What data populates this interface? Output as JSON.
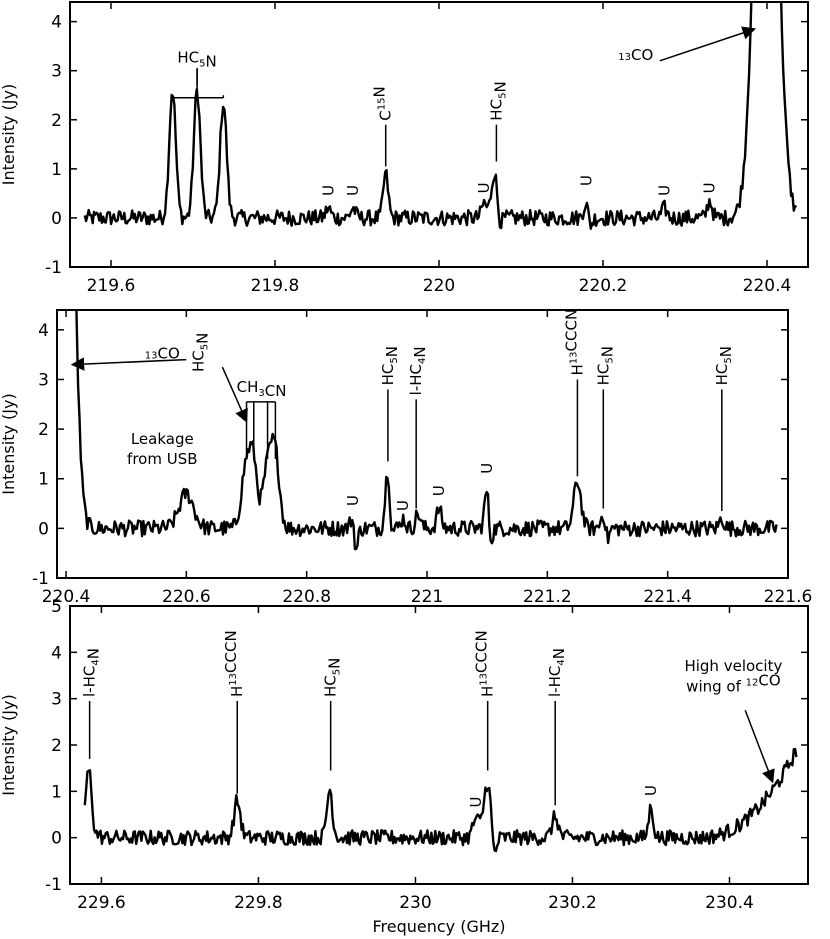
{
  "chart_data": [
    {
      "type": "line",
      "xlim": [
        219.55,
        220.45
      ],
      "ylim": [
        -1,
        4.4
      ],
      "xticks": [
        "219.6",
        "219.8",
        "220",
        "220.2",
        "220.4"
      ],
      "yticks": [
        "-1",
        "0",
        "1",
        "2",
        "3",
        "4"
      ],
      "xlabel": "",
      "ylabel": "Intensity (Jy)",
      "peaks": [
        {
          "x": 219.675,
          "y": 2.6,
          "w": 0.004
        },
        {
          "x": 219.705,
          "y": 2.6,
          "w": 0.004
        },
        {
          "x": 219.737,
          "y": 2.35,
          "w": 0.004
        },
        {
          "x": 219.865,
          "y": 0.2,
          "w": 0.003
        },
        {
          "x": 219.895,
          "y": 0.2,
          "w": 0.003
        },
        {
          "x": 219.935,
          "y": 0.9,
          "w": 0.003
        },
        {
          "x": 220.055,
          "y": 0.3,
          "w": 0.003
        },
        {
          "x": 220.068,
          "y": 1.0,
          "w": 0.004
        },
        {
          "x": 220.18,
          "y": 0.45,
          "w": 0.003
        },
        {
          "x": 220.275,
          "y": 0.2,
          "w": 0.003
        },
        {
          "x": 220.33,
          "y": 0.35,
          "w": 0.003
        },
        {
          "x": 220.399,
          "y": 14,
          "w": 0.012
        }
      ],
      "dips": [
        {
          "x": 220.073,
          "d": -0.35
        },
        {
          "x": 220.183,
          "d": -0.3
        }
      ],
      "labels": [
        {
          "id": "hc5n",
          "parts": [
            [
              "HC",
              "n"
            ],
            [
              "5",
              "sub"
            ],
            [
              "N",
              "n"
            ]
          ],
          "x": 219.705,
          "line_top": 3.05,
          "line_bottom": 2.7,
          "rot": 0,
          "extra_lines": [
            219.675,
            219.737
          ]
        },
        {
          "id": "c15n",
          "parts": [
            [
              "C",
              "n"
            ],
            [
              "15",
              "sup"
            ],
            [
              "N",
              "n"
            ]
          ],
          "x": 219.935,
          "line_top": 1.9,
          "line_bottom": 1.05,
          "rot": -90
        },
        {
          "id": "hc5n-b",
          "parts": [
            [
              "HC",
              "n"
            ],
            [
              "5",
              "sub"
            ],
            [
              "N",
              "n"
            ]
          ],
          "x": 220.07,
          "line_top": 1.9,
          "line_bottom": 1.15,
          "rot": -90
        },
        {
          "id": "u1",
          "parts": [
            [
              "U",
              "n"
            ]
          ],
          "x": 219.865,
          "rot": -90,
          "y": 0.45
        },
        {
          "id": "u2",
          "parts": [
            [
              "U",
              "n"
            ]
          ],
          "x": 219.895,
          "rot": -90,
          "y": 0.45
        },
        {
          "id": "u3",
          "parts": [
            [
              "U",
              "n"
            ]
          ],
          "x": 220.055,
          "rot": -90,
          "y": 0.5
        },
        {
          "id": "u4",
          "parts": [
            [
              "U",
              "n"
            ]
          ],
          "x": 220.18,
          "rot": -90,
          "y": 0.65
        },
        {
          "id": "u5",
          "parts": [
            [
              "U",
              "n"
            ]
          ],
          "x": 220.275,
          "rot": -90,
          "y": 0.45
        },
        {
          "id": "u6",
          "parts": [
            [
              "U",
              "n"
            ]
          ],
          "x": 220.33,
          "rot": -90,
          "y": 0.5
        },
        {
          "id": "co13",
          "parts": [
            [
              "13",
              "sup"
            ],
            [
              "CO",
              "n"
            ]
          ],
          "x": 220.24,
          "y": 3.1,
          "rot": 0,
          "arrow_to": [
            220.385,
            3.85
          ]
        }
      ]
    },
    {
      "type": "line",
      "xlim": [
        220.385,
        221.6
      ],
      "ylim": [
        -1,
        4.4
      ],
      "xticks": [
        "220.4",
        "220.6",
        "220.8",
        "221",
        "221.2",
        "221.4",
        "221.6"
      ],
      "yticks": [
        "-1",
        "0",
        "1",
        "2",
        "3",
        "4"
      ],
      "xlabel": "",
      "ylabel": "Intensity (Jy)",
      "peaks": [
        {
          "x": 220.399,
          "y": 14,
          "w": 0.012
        },
        {
          "x": 220.6,
          "y": 0.7,
          "w": 0.012
        },
        {
          "x": 220.7,
          "y": 1.3,
          "w": 0.008
        },
        {
          "x": 220.712,
          "y": 1.1,
          "w": 0.006
        },
        {
          "x": 220.735,
          "y": 1.2,
          "w": 0.008
        },
        {
          "x": 220.748,
          "y": 1.35,
          "w": 0.007
        },
        {
          "x": 220.877,
          "y": 0.25,
          "w": 0.004
        },
        {
          "x": 220.935,
          "y": 1.25,
          "w": 0.004
        },
        {
          "x": 220.96,
          "y": 0.2,
          "w": 0.004
        },
        {
          "x": 220.985,
          "y": 0.3,
          "w": 0.004
        },
        {
          "x": 221.02,
          "y": 0.4,
          "w": 0.004
        },
        {
          "x": 221.1,
          "y": 0.85,
          "w": 0.004
        },
        {
          "x": 221.25,
          "y": 0.95,
          "w": 0.006
        },
        {
          "x": 221.293,
          "y": 0.3,
          "w": 0.004
        },
        {
          "x": 221.49,
          "y": 0.2,
          "w": 0.004
        }
      ],
      "dips": [
        {
          "x": 220.882,
          "d": -0.55
        },
        {
          "x": 220.94,
          "d": -0.35
        },
        {
          "x": 221.105,
          "d": -0.5
        },
        {
          "x": 221.3,
          "d": -0.25
        }
      ],
      "labels": [
        {
          "id": "co13-b",
          "parts": [
            [
              "13",
              "sup"
            ],
            [
              "CO",
              "n"
            ]
          ],
          "x": 220.56,
          "y": 3.3,
          "rot": 0,
          "arrow_to": [
            220.41,
            3.3
          ]
        },
        {
          "id": "hc5n-c",
          "parts": [
            [
              "HC",
              "n"
            ],
            [
              "5",
              "sub"
            ],
            [
              "N",
              "n"
            ]
          ],
          "x": 220.62,
          "y": 3.15,
          "rot": -90,
          "arrow_to": [
            220.7,
            2.15
          ]
        },
        {
          "id": "ch3cn",
          "parts": [
            [
              "CH",
              "n"
            ],
            [
              "3",
              "sub"
            ],
            [
              "CN",
              "n"
            ]
          ],
          "x": 220.725,
          "y": 2.75,
          "rot": 0,
          "lines": [
            220.7,
            220.712,
            220.735,
            220.748
          ],
          "line_top": 2.55,
          "line_bottom": 1.4
        },
        {
          "id": "leakage1",
          "parts": [
            [
              "Leakage",
              "n"
            ]
          ],
          "x": 220.56,
          "y": 1.7,
          "rot": 0
        },
        {
          "id": "leakage2",
          "parts": [
            [
              "from USB",
              "n"
            ]
          ],
          "x": 220.56,
          "y": 1.3,
          "rot": 0
        },
        {
          "id": "hc5n-d",
          "parts": [
            [
              "HC",
              "n"
            ],
            [
              "5",
              "sub"
            ],
            [
              "N",
              "n"
            ]
          ],
          "x": 220.935,
          "line_top": 2.8,
          "line_bottom": 1.35,
          "rot": -90
        },
        {
          "id": "lhc4n",
          "parts": [
            [
              "l-HC",
              "n"
            ],
            [
              "4",
              "sub"
            ],
            [
              "N",
              "n"
            ]
          ],
          "x": 220.982,
          "line_top": 2.6,
          "line_bottom": 0.4,
          "rot": -90
        },
        {
          "id": "hccon",
          "parts": [
            [
              "H",
              "n"
            ],
            [
              "13",
              "sup"
            ],
            [
              "CCCN",
              "n"
            ]
          ],
          "x": 221.25,
          "line_top": 3.0,
          "line_bottom": 1.05,
          "rot": -90
        },
        {
          "id": "hc5n-e",
          "parts": [
            [
              "HC",
              "n"
            ],
            [
              "5",
              "sub"
            ],
            [
              "N",
              "n"
            ]
          ],
          "x": 221.293,
          "line_top": 2.8,
          "line_bottom": 0.4,
          "rot": -90
        },
        {
          "id": "hc5n-f",
          "parts": [
            [
              "HC",
              "n"
            ],
            [
              "5",
              "sub"
            ],
            [
              "N",
              "n"
            ]
          ],
          "x": 221.49,
          "line_top": 2.8,
          "line_bottom": 0.35,
          "rot": -90
        },
        {
          "id": "u7",
          "parts": [
            [
              "U",
              "n"
            ]
          ],
          "x": 220.877,
          "rot": -90,
          "y": 0.45
        },
        {
          "id": "u8",
          "parts": [
            [
              "U",
              "n"
            ]
          ],
          "x": 220.96,
          "rot": -90,
          "y": 0.35
        },
        {
          "id": "u9",
          "parts": [
            [
              "U",
              "n"
            ]
          ],
          "x": 221.02,
          "rot": -90,
          "y": 0.65
        },
        {
          "id": "u10",
          "parts": [
            [
              "U",
              "n"
            ]
          ],
          "x": 221.1,
          "rot": -90,
          "y": 1.1
        }
      ]
    },
    {
      "type": "line",
      "xlim": [
        229.56,
        230.5
      ],
      "ylim": [
        -1,
        5
      ],
      "xticks": [
        "229.6",
        "229.8",
        "230",
        "230.2",
        "230.4"
      ],
      "yticks": [
        "-1",
        "0",
        "1",
        "2",
        "3",
        "4",
        "5"
      ],
      "xlabel": "Frequency (GHz)",
      "ylabel": "Intensity (Jy)",
      "peaks": [
        {
          "x": 229.585,
          "y": 1.55,
          "w": 0.005
        },
        {
          "x": 229.773,
          "y": 0.8,
          "w": 0.004
        },
        {
          "x": 229.892,
          "y": 1.3,
          "w": 0.004
        },
        {
          "x": 230.077,
          "y": 0.4,
          "w": 0.004
        },
        {
          "x": 230.092,
          "y": 1.2,
          "w": 0.005
        },
        {
          "x": 230.178,
          "y": 0.45,
          "w": 0.004
        },
        {
          "x": 230.3,
          "y": 0.65,
          "w": 0.003
        }
      ],
      "dips": [
        {
          "x": 229.59,
          "d": -0.55
        },
        {
          "x": 229.895,
          "d": -0.5
        },
        {
          "x": 230.1,
          "d": -0.6
        }
      ],
      "wing": {
        "start": 230.36,
        "end": 230.5,
        "y_end": 2.4
      },
      "labels": [
        {
          "id": "lhc4n-b",
          "parts": [
            [
              "l-HC",
              "n"
            ],
            [
              "4",
              "sub"
            ],
            [
              "N",
              "n"
            ]
          ],
          "x": 229.585,
          "line_top": 2.95,
          "line_bottom": 1.7,
          "rot": -90
        },
        {
          "id": "hccon-b",
          "parts": [
            [
              "H",
              "n"
            ],
            [
              "13",
              "sup"
            ],
            [
              "CCCN",
              "n"
            ]
          ],
          "x": 229.773,
          "line_top": 2.95,
          "line_bottom": 0.95,
          "rot": -90
        },
        {
          "id": "hc5n-g",
          "parts": [
            [
              "HC",
              "n"
            ],
            [
              "5",
              "sub"
            ],
            [
              "N",
              "n"
            ]
          ],
          "x": 229.892,
          "line_top": 2.95,
          "line_bottom": 1.45,
          "rot": -90
        },
        {
          "id": "hccon-c",
          "parts": [
            [
              "H",
              "n"
            ],
            [
              "13",
              "sup"
            ],
            [
              "CCCN",
              "n"
            ]
          ],
          "x": 230.092,
          "line_top": 2.95,
          "line_bottom": 1.45,
          "rot": -90
        },
        {
          "id": "lhc4n-c",
          "parts": [
            [
              "l-HC",
              "n"
            ],
            [
              "4",
              "sub"
            ],
            [
              "N",
              "n"
            ]
          ],
          "x": 230.178,
          "line_top": 2.95,
          "line_bottom": 0.7,
          "rot": -90
        },
        {
          "id": "u11",
          "parts": [
            [
              "U",
              "n"
            ]
          ],
          "x": 230.077,
          "rot": -90,
          "y": 0.65
        },
        {
          "id": "u12",
          "parts": [
            [
              "U",
              "n"
            ]
          ],
          "x": 230.3,
          "rot": -90,
          "y": 0.9
        },
        {
          "id": "wing1",
          "parts": [
            [
              "High velocity",
              "n"
            ]
          ],
          "x": 230.405,
          "y": 3.6,
          "rot": 0
        },
        {
          "id": "wing2",
          "parts": [
            [
              "wing of ",
              "n"
            ],
            [
              "12",
              "sup"
            ],
            [
              "CO",
              "n"
            ]
          ],
          "x": 230.405,
          "y": 3.15,
          "rot": 0,
          "arrow_from": [
            230.42,
            2.75
          ],
          "arrow_to": [
            230.455,
            1.2
          ]
        }
      ]
    }
  ]
}
